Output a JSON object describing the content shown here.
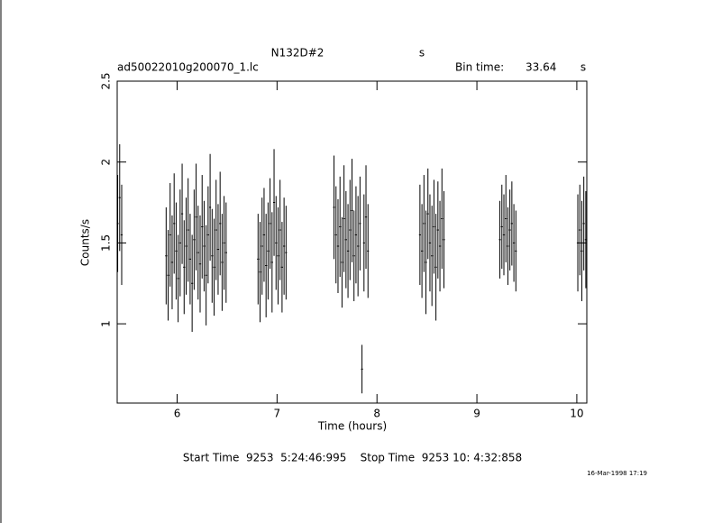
{
  "chart_data": {
    "type": "errorbar",
    "title": "N132D#2",
    "title_unit": "s",
    "file_label": "ad50022010g200070_1.lc",
    "bin_label": "Bin time:",
    "bin_time": 33.64,
    "bin_unit": "s",
    "xlabel": "Time (hours)",
    "ylabel": "Counts/s",
    "footer": "Start Time  9253  5:24:46:995    Stop Time  9253 10: 4:32:858",
    "timestamp": "16-Mar-1998 17:19",
    "color": "#000000",
    "xlim": [
      5.4,
      10.1
    ],
    "xticks": [
      6,
      7,
      8,
      9,
      10
    ],
    "ylim": [
      0.51,
      2.5
    ],
    "yticks": [
      1,
      1.5,
      2,
      2.5
    ],
    "series": [
      {
        "x": [
          5.405,
          5.425,
          5.445,
          5.89,
          5.91,
          5.93,
          5.95,
          5.97,
          5.99,
          6.01,
          6.03,
          6.05,
          6.07,
          6.09,
          6.11,
          6.13,
          6.15,
          6.17,
          6.19,
          6.21,
          6.23,
          6.25,
          6.27,
          6.29,
          6.31,
          6.33,
          6.35,
          6.37,
          6.39,
          6.41,
          6.43,
          6.45,
          6.47,
          6.49,
          6.81,
          6.83,
          6.85,
          6.87,
          6.89,
          6.91,
          6.93,
          6.95,
          6.97,
          6.99,
          7.01,
          7.03,
          7.05,
          7.07,
          7.09,
          7.57,
          7.59,
          7.61,
          7.63,
          7.65,
          7.67,
          7.69,
          7.71,
          7.73,
          7.75,
          7.77,
          7.79,
          7.81,
          7.83,
          7.85,
          7.87,
          7.89,
          7.91,
          8.43,
          8.45,
          8.47,
          8.49,
          8.51,
          8.53,
          8.55,
          8.57,
          8.59,
          8.61,
          8.63,
          8.65,
          8.67,
          9.23,
          9.25,
          9.27,
          9.29,
          9.31,
          9.33,
          9.35,
          9.37,
          9.39,
          10.01,
          10.03,
          10.05,
          10.07,
          10.09
        ],
        "values": [
          1.62,
          1.78,
          1.55,
          1.42,
          1.3,
          1.55,
          1.38,
          1.62,
          1.45,
          1.28,
          1.5,
          1.68,
          1.35,
          1.48,
          1.58,
          1.4,
          1.25,
          1.52,
          1.66,
          1.44,
          1.37,
          1.6,
          1.48,
          1.3,
          1.55,
          1.72,
          1.42,
          1.35,
          1.58,
          1.46,
          1.62,
          1.38,
          1.5,
          1.44,
          1.4,
          1.32,
          1.48,
          1.55,
          1.36,
          1.45,
          1.62,
          1.38,
          1.75,
          1.5,
          1.42,
          1.58,
          1.35,
          1.48,
          1.44,
          1.72,
          1.55,
          1.48,
          1.6,
          1.38,
          1.65,
          1.52,
          1.45,
          1.58,
          1.7,
          1.42,
          1.55,
          1.48,
          1.62,
          0.72,
          1.5,
          1.66,
          1.45,
          1.55,
          1.45,
          1.62,
          1.38,
          1.68,
          1.5,
          1.42,
          1.6,
          1.35,
          1.58,
          1.48,
          1.65,
          1.52,
          1.52,
          1.6,
          1.55,
          1.65,
          1.48,
          1.58,
          1.62,
          1.5,
          1.45,
          1.5,
          1.58,
          1.45,
          1.62,
          1.52
        ],
        "errors": [
          0.3,
          0.33,
          0.31,
          0.3,
          0.28,
          0.32,
          0.29,
          0.31,
          0.3,
          0.27,
          0.33,
          0.31,
          0.29,
          0.3,
          0.32,
          0.28,
          0.3,
          0.31,
          0.33,
          0.29,
          0.3,
          0.32,
          0.28,
          0.31,
          0.3,
          0.33,
          0.29,
          0.3,
          0.31,
          0.28,
          0.32,
          0.3,
          0.29,
          0.31,
          0.28,
          0.31,
          0.3,
          0.29,
          0.32,
          0.3,
          0.28,
          0.31,
          0.33,
          0.29,
          0.3,
          0.31,
          0.28,
          0.3,
          0.29,
          0.32,
          0.3,
          0.29,
          0.31,
          0.28,
          0.33,
          0.3,
          0.29,
          0.31,
          0.32,
          0.28,
          0.3,
          0.31,
          0.29,
          0.15,
          0.3,
          0.32,
          0.29,
          0.31,
          0.29,
          0.3,
          0.32,
          0.28,
          0.3,
          0.31,
          0.29,
          0.33,
          0.3,
          0.28,
          0.31,
          0.3,
          0.24,
          0.26,
          0.25,
          0.27,
          0.24,
          0.25,
          0.26,
          0.24,
          0.25,
          0.3,
          0.28,
          0.31,
          0.29,
          0.3
        ]
      }
    ]
  }
}
